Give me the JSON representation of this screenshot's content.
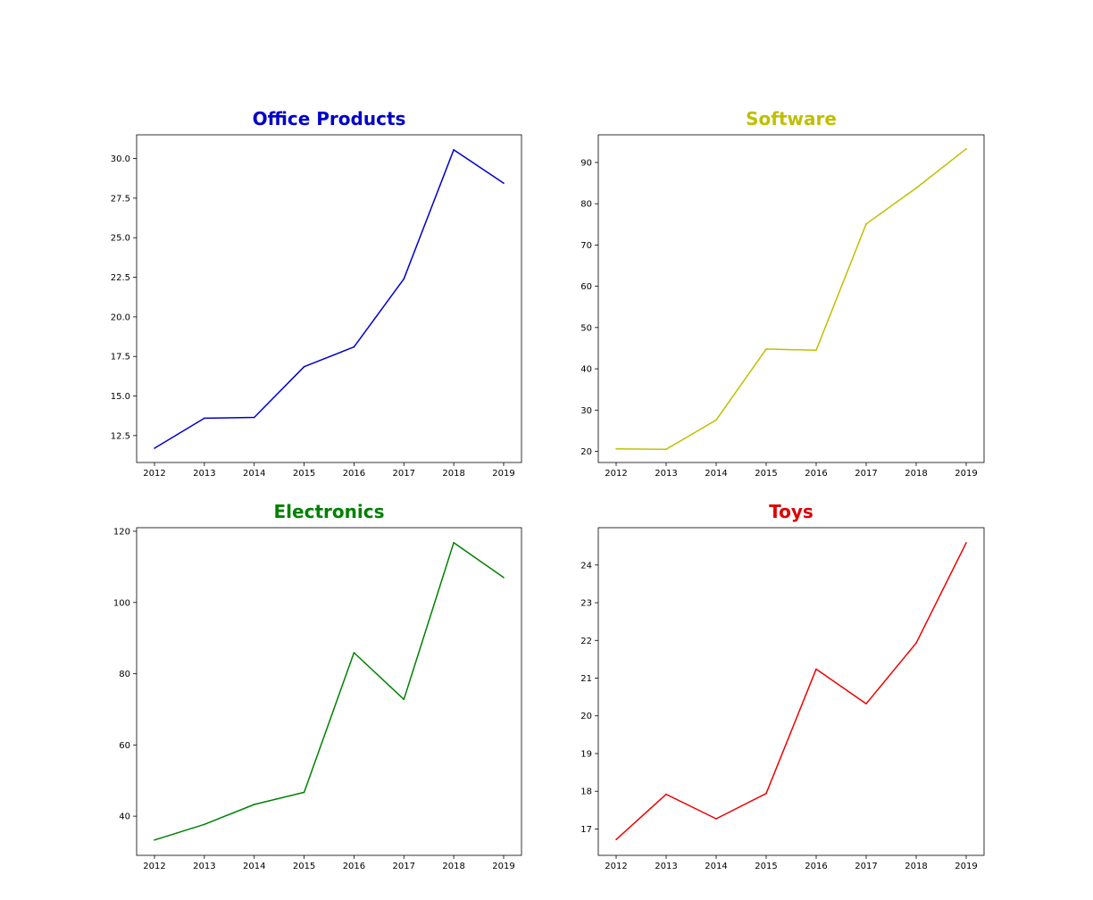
{
  "chart_data": [
    {
      "type": "line",
      "title": "Office Products",
      "title_color": "#0000cc",
      "line_color": "#0000cc",
      "x": [
        "2012",
        "2013",
        "2014",
        "2015",
        "2016",
        "2017",
        "2018",
        "2019"
      ],
      "values": [
        11.7,
        13.6,
        13.65,
        16.85,
        18.1,
        22.4,
        30.55,
        28.45
      ],
      "ylim": [
        10.8,
        31.5
      ],
      "yticks": [
        12.5,
        15.0,
        17.5,
        20.0,
        22.5,
        25.0,
        27.5,
        30.0
      ],
      "ytick_labels": [
        "12.5",
        "15.0",
        "17.5",
        "20.0",
        "22.5",
        "25.0",
        "27.5",
        "30.0"
      ],
      "grid": false
    },
    {
      "type": "line",
      "title": "Software",
      "title_color": "#bfbf00",
      "line_color": "#bfbf00",
      "x": [
        "2012",
        "2013",
        "2014",
        "2015",
        "2016",
        "2017",
        "2018",
        "2019"
      ],
      "values": [
        20.6,
        20.5,
        27.6,
        44.8,
        44.5,
        75.1,
        83.8,
        93.3
      ],
      "ylim": [
        17.3,
        96.7
      ],
      "yticks": [
        20,
        30,
        40,
        50,
        60,
        70,
        80,
        90
      ],
      "ytick_labels": [
        "20",
        "30",
        "40",
        "50",
        "60",
        "70",
        "80",
        "90"
      ],
      "grid": false
    },
    {
      "type": "line",
      "title": "Electronics",
      "title_color": "#008000",
      "line_color": "#008000",
      "x": [
        "2012",
        "2013",
        "2014",
        "2015",
        "2016",
        "2017",
        "2018",
        "2019"
      ],
      "values": [
        33.3,
        37.7,
        43.3,
        46.7,
        85.9,
        72.8,
        116.8,
        107.0
      ],
      "ylim": [
        29.0,
        121.0
      ],
      "yticks": [
        40,
        60,
        80,
        100,
        120
      ],
      "ytick_labels": [
        "40",
        "60",
        "80",
        "100",
        "120"
      ],
      "grid": false
    },
    {
      "type": "line",
      "title": "Toys",
      "title_color": "#dd0000",
      "line_color": "#ee0000",
      "x": [
        "2012",
        "2013",
        "2014",
        "2015",
        "2016",
        "2017",
        "2018",
        "2019"
      ],
      "values": [
        16.72,
        17.92,
        17.27,
        17.94,
        21.24,
        20.32,
        21.93,
        24.59
      ],
      "ylim": [
        16.3,
        24.99
      ],
      "yticks": [
        17,
        18,
        19,
        20,
        21,
        22,
        23,
        24
      ],
      "ytick_labels": [
        "17",
        "18",
        "19",
        "20",
        "21",
        "22",
        "23",
        "24"
      ],
      "grid": false
    }
  ]
}
